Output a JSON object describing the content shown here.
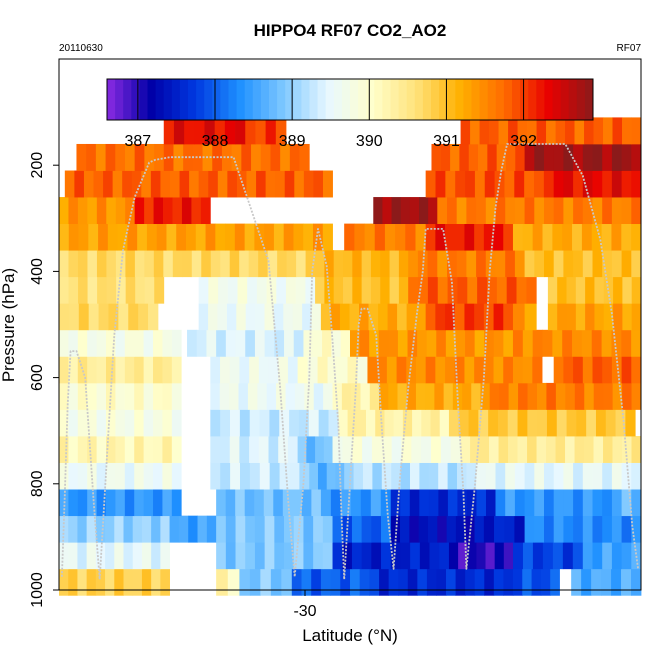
{
  "chart_data": {
    "type": "heatmap",
    "title": "HIPPO4 RF07 CO2_AO2",
    "subtitle_left": "20110630",
    "subtitle_right": "RF07",
    "xlabel": "Latitude (°N)",
    "ylabel": "Pressure (hPa)",
    "x_ticks": [
      "-30"
    ],
    "y_ticks": [
      "200",
      "400",
      "600",
      "800",
      "1000"
    ],
    "y_tick_values": [
      200,
      400,
      600,
      800,
      1000
    ],
    "ylim": [
      1000,
      0
    ],
    "colorbar": {
      "min": 386.6,
      "max": 392.9,
      "ticks": [
        387,
        388,
        389,
        390,
        391,
        392
      ],
      "tick_labels": [
        "387",
        "388",
        "389",
        "390",
        "391",
        "392"
      ],
      "colors": [
        "#8b2be2",
        "#0000a8",
        "#0038e0",
        "#1e90ff",
        "#7ec8ff",
        "#e8f8ff",
        "#ffffcc",
        "#ffe27a",
        "#ffb000",
        "#ff6a00",
        "#e80000",
        "#8b1a1a"
      ]
    },
    "rows": [
      {
        "p": 985,
        "cells": [
          {
            "x0": 0.0,
            "x1": 0.19,
            "v": 390.8
          },
          {
            "x0": 0.27,
            "x1": 0.31,
            "v": 390.2
          },
          {
            "x0": 0.31,
            "x1": 0.4,
            "v": 388.9
          },
          {
            "x0": 0.4,
            "x1": 0.55,
            "v": 388.0
          },
          {
            "x0": 0.55,
            "x1": 0.78,
            "v": 387.6
          },
          {
            "x0": 0.78,
            "x1": 0.86,
            "v": 387.9
          },
          {
            "x0": 0.88,
            "x1": 1.0,
            "v": 388.6
          }
        ]
      },
      {
        "p": 935,
        "cells": [
          {
            "x0": 0.0,
            "x1": 0.19,
            "v": 389.5
          },
          {
            "x0": 0.27,
            "x1": 0.47,
            "v": 388.9
          },
          {
            "x0": 0.47,
            "x1": 0.67,
            "v": 387.5
          },
          {
            "x0": 0.67,
            "x1": 0.78,
            "v": 387.0
          },
          {
            "x0": 0.78,
            "x1": 0.9,
            "v": 387.8
          },
          {
            "x0": 0.9,
            "x1": 1.0,
            "v": 388.5
          }
        ]
      },
      {
        "p": 885,
        "cells": [
          {
            "x0": 0.0,
            "x1": 0.19,
            "v": 389.0
          },
          {
            "x0": 0.19,
            "x1": 0.27,
            "v": 388.5
          },
          {
            "x0": 0.27,
            "x1": 0.47,
            "v": 388.9
          },
          {
            "x0": 0.47,
            "x1": 0.57,
            "v": 388.0
          },
          {
            "x0": 0.57,
            "x1": 0.73,
            "v": 387.3
          },
          {
            "x0": 0.73,
            "x1": 0.8,
            "v": 387.5
          },
          {
            "x0": 0.8,
            "x1": 1.0,
            "v": 388.3
          }
        ]
      },
      {
        "p": 835,
        "cells": [
          {
            "x0": 0.0,
            "x1": 0.21,
            "v": 388.4
          },
          {
            "x0": 0.27,
            "x1": 0.45,
            "v": 388.8
          },
          {
            "x0": 0.45,
            "x1": 0.57,
            "v": 388.4
          },
          {
            "x0": 0.57,
            "x1": 0.75,
            "v": 387.6
          },
          {
            "x0": 0.75,
            "x1": 0.95,
            "v": 388.4
          },
          {
            "x0": 0.95,
            "x1": 1.0,
            "v": 388.7
          }
        ]
      },
      {
        "p": 785,
        "cells": [
          {
            "x0": 0.0,
            "x1": 0.21,
            "v": 389.6
          },
          {
            "x0": 0.26,
            "x1": 0.43,
            "v": 389.3
          },
          {
            "x0": 0.43,
            "x1": 0.49,
            "v": 388.7
          },
          {
            "x0": 0.49,
            "x1": 0.7,
            "v": 389.2
          },
          {
            "x0": 0.7,
            "x1": 1.0,
            "v": 389.5
          }
        ]
      },
      {
        "p": 735,
        "cells": [
          {
            "x0": 0.0,
            "x1": 0.21,
            "v": 390.2
          },
          {
            "x0": 0.26,
            "x1": 0.41,
            "v": 389.4
          },
          {
            "x0": 0.41,
            "x1": 0.47,
            "v": 388.8
          },
          {
            "x0": 0.47,
            "x1": 0.69,
            "v": 389.8
          },
          {
            "x0": 0.69,
            "x1": 1.0,
            "v": 390.4
          }
        ]
      },
      {
        "p": 685,
        "cells": [
          {
            "x0": 0.0,
            "x1": 0.21,
            "v": 389.8
          },
          {
            "x0": 0.26,
            "x1": 0.48,
            "v": 389.3
          },
          {
            "x0": 0.48,
            "x1": 0.67,
            "v": 390.3
          },
          {
            "x0": 0.67,
            "x1": 0.99,
            "v": 390.9
          }
        ]
      },
      {
        "p": 635,
        "cells": [
          {
            "x0": 0.0,
            "x1": 0.21,
            "v": 390.0
          },
          {
            "x0": 0.26,
            "x1": 0.47,
            "v": 389.6
          },
          {
            "x0": 0.47,
            "x1": 0.55,
            "v": 390.3
          },
          {
            "x0": 0.55,
            "x1": 0.74,
            "v": 391.2
          },
          {
            "x0": 0.74,
            "x1": 1.0,
            "v": 391.6
          }
        ]
      },
      {
        "p": 585,
        "cells": [
          {
            "x0": 0.0,
            "x1": 0.21,
            "v": 390.4
          },
          {
            "x0": 0.26,
            "x1": 0.41,
            "v": 389.6
          },
          {
            "x0": 0.41,
            "x1": 0.53,
            "v": 390.0
          },
          {
            "x0": 0.53,
            "x1": 0.83,
            "v": 391.5
          },
          {
            "x0": 0.85,
            "x1": 1.0,
            "v": 391.8
          }
        ]
      },
      {
        "p": 535,
        "cells": [
          {
            "x0": 0.0,
            "x1": 0.21,
            "v": 389.8
          },
          {
            "x0": 0.22,
            "x1": 0.42,
            "v": 389.4
          },
          {
            "x0": 0.42,
            "x1": 0.5,
            "v": 390.0
          },
          {
            "x0": 0.5,
            "x1": 0.78,
            "v": 391.4
          },
          {
            "x0": 0.78,
            "x1": 1.0,
            "v": 391.5
          }
        ]
      },
      {
        "p": 485,
        "cells": [
          {
            "x0": 0.0,
            "x1": 0.17,
            "v": 390.7
          },
          {
            "x0": 0.24,
            "x1": 0.45,
            "v": 389.6
          },
          {
            "x0": 0.45,
            "x1": 0.63,
            "v": 391.2
          },
          {
            "x0": 0.63,
            "x1": 0.78,
            "v": 392.0
          },
          {
            "x0": 0.78,
            "x1": 0.82,
            "v": 391.4
          },
          {
            "x0": 0.84,
            "x1": 1.0,
            "v": 391.3
          }
        ]
      },
      {
        "p": 435,
        "cells": [
          {
            "x0": 0.0,
            "x1": 0.18,
            "v": 390.6
          },
          {
            "x0": 0.24,
            "x1": 0.44,
            "v": 389.7
          },
          {
            "x0": 0.44,
            "x1": 0.6,
            "v": 391.0
          },
          {
            "x0": 0.6,
            "x1": 0.82,
            "v": 391.8
          },
          {
            "x0": 0.84,
            "x1": 1.0,
            "v": 391.0
          }
        ]
      },
      {
        "p": 385,
        "cells": [
          {
            "x0": 0.0,
            "x1": 0.44,
            "v": 390.7
          },
          {
            "x0": 0.44,
            "x1": 0.6,
            "v": 391.1
          },
          {
            "x0": 0.6,
            "x1": 0.8,
            "v": 391.6
          },
          {
            "x0": 0.8,
            "x1": 1.0,
            "v": 391.0
          }
        ]
      },
      {
        "p": 335,
        "cells": [
          {
            "x0": 0.0,
            "x1": 0.47,
            "v": 391.3
          },
          {
            "x0": 0.49,
            "x1": 0.63,
            "v": 391.6
          },
          {
            "x0": 0.63,
            "x1": 0.78,
            "v": 392.2
          },
          {
            "x0": 0.78,
            "x1": 1.0,
            "v": 391.2
          }
        ]
      },
      {
        "p": 285,
        "cells": [
          {
            "x0": 0.0,
            "x1": 0.13,
            "v": 391.4
          },
          {
            "x0": 0.13,
            "x1": 0.26,
            "v": 392.2
          },
          {
            "x0": 0.54,
            "x1": 0.65,
            "v": 392.8
          },
          {
            "x0": 0.65,
            "x1": 1.0,
            "v": 391.6
          }
        ]
      },
      {
        "p": 235,
        "cells": [
          {
            "x0": 0.01,
            "x1": 0.47,
            "v": 391.8
          },
          {
            "x0": 0.63,
            "x1": 0.85,
            "v": 391.9
          },
          {
            "x0": 0.85,
            "x1": 1.0,
            "v": 392.3
          }
        ]
      },
      {
        "p": 185,
        "cells": [
          {
            "x0": 0.03,
            "x1": 0.43,
            "v": 391.7
          },
          {
            "x0": 0.64,
            "x1": 0.8,
            "v": 391.8
          },
          {
            "x0": 0.8,
            "x1": 1.0,
            "v": 392.8
          }
        ]
      },
      {
        "p": 135,
        "cells": [
          {
            "x0": 0.18,
            "x1": 0.32,
            "v": 392.3
          },
          {
            "x0": 0.32,
            "x1": 0.39,
            "v": 392.0
          },
          {
            "x0": 0.69,
            "x1": 1.0,
            "v": 391.8
          }
        ]
      }
    ],
    "flight_track": [
      [
        0.005,
        975
      ],
      [
        0.01,
        820
      ],
      [
        0.015,
        650
      ],
      [
        0.02,
        550
      ],
      [
        0.03,
        550
      ],
      [
        0.045,
        600
      ],
      [
        0.06,
        840
      ],
      [
        0.07,
        980
      ],
      [
        0.085,
        700
      ],
      [
        0.095,
        520
      ],
      [
        0.11,
        360
      ],
      [
        0.13,
        260
      ],
      [
        0.155,
        195
      ],
      [
        0.165,
        190
      ],
      [
        0.19,
        185
      ],
      [
        0.3,
        185
      ],
      [
        0.36,
        380
      ],
      [
        0.38,
        620
      ],
      [
        0.395,
        850
      ],
      [
        0.405,
        975
      ],
      [
        0.42,
        800
      ],
      [
        0.43,
        600
      ],
      [
        0.435,
        400
      ],
      [
        0.445,
        320
      ],
      [
        0.46,
        390
      ],
      [
        0.47,
        530
      ],
      [
        0.48,
        690
      ],
      [
        0.485,
        850
      ],
      [
        0.49,
        980
      ],
      [
        0.5,
        800
      ],
      [
        0.51,
        620
      ],
      [
        0.515,
        500
      ],
      [
        0.52,
        470
      ],
      [
        0.53,
        470
      ],
      [
        0.545,
        520
      ],
      [
        0.555,
        700
      ],
      [
        0.565,
        860
      ],
      [
        0.575,
        960
      ],
      [
        0.585,
        800
      ],
      [
        0.6,
        620
      ],
      [
        0.615,
        480
      ],
      [
        0.625,
        400
      ],
      [
        0.63,
        320
      ],
      [
        0.66,
        320
      ],
      [
        0.675,
        420
      ],
      [
        0.685,
        640
      ],
      [
        0.695,
        820
      ],
      [
        0.7,
        960
      ],
      [
        0.715,
        800
      ],
      [
        0.73,
        600
      ],
      [
        0.74,
        400
      ],
      [
        0.75,
        280
      ],
      [
        0.76,
        210
      ],
      [
        0.77,
        160
      ],
      [
        0.84,
        160
      ],
      [
        0.87,
        160
      ],
      [
        0.9,
        220
      ],
      [
        0.93,
        340
      ],
      [
        0.95,
        480
      ],
      [
        0.97,
        680
      ],
      [
        0.985,
        880
      ],
      [
        0.995,
        960
      ]
    ],
    "grid": false
  }
}
